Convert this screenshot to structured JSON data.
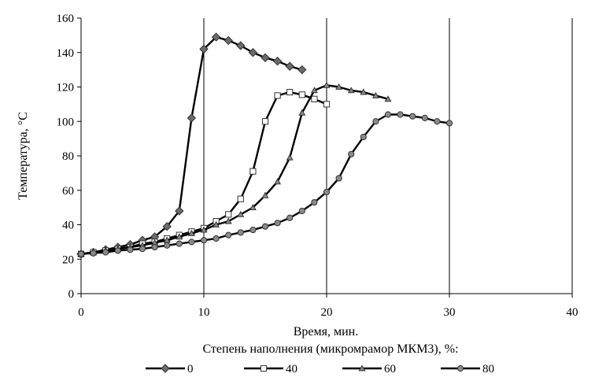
{
  "chart_data": {
    "type": "line",
    "title": "",
    "xlabel": "Время, мин.",
    "ylabel": "Температура, °С",
    "xlim": [
      0,
      40
    ],
    "ylim": [
      0,
      160
    ],
    "xticks": [
      0,
      10,
      20,
      30,
      40
    ],
    "yticks": [
      0,
      20,
      40,
      60,
      80,
      100,
      120,
      140,
      160
    ],
    "grid": "vertical",
    "legend_title": "Степень наполнения (микромрамор МКМ3), %:",
    "legend_position": "bottom",
    "series": [
      {
        "name": "0",
        "marker": "diamond",
        "x": [
          0,
          1,
          2,
          3,
          4,
          5,
          6,
          7,
          8,
          9,
          10,
          11,
          12,
          13,
          14,
          15,
          16,
          17,
          18
        ],
        "y": [
          23,
          24,
          25.5,
          27,
          28.5,
          31,
          33,
          39,
          48,
          102,
          142,
          149,
          147,
          144,
          140,
          137,
          135,
          132,
          130
        ]
      },
      {
        "name": "40",
        "marker": "square",
        "x": [
          0,
          1,
          2,
          3,
          4,
          5,
          6,
          7,
          8,
          9,
          10,
          11,
          12,
          13,
          14,
          15,
          16,
          17,
          18,
          19,
          20
        ],
        "y": [
          23,
          24,
          25,
          26,
          27,
          29,
          30,
          32,
          34,
          36,
          38,
          42,
          46,
          55,
          71,
          100,
          115,
          117,
          115.5,
          113,
          110
        ]
      },
      {
        "name": "60",
        "marker": "triangle",
        "x": [
          0,
          1,
          2,
          3,
          4,
          5,
          6,
          7,
          8,
          9,
          10,
          11,
          12,
          13,
          14,
          15,
          16,
          17,
          18,
          19,
          20,
          21,
          22,
          23,
          24,
          25
        ],
        "y": [
          23,
          24,
          25,
          26,
          27,
          28,
          29.5,
          31,
          33,
          35,
          37,
          40,
          42,
          46,
          50,
          57,
          65,
          79,
          105,
          118,
          121,
          120,
          118,
          117,
          115,
          113
        ]
      },
      {
        "name": "80",
        "marker": "circle",
        "x": [
          0,
          1,
          2,
          3,
          4,
          5,
          6,
          7,
          8,
          9,
          10,
          11,
          12,
          13,
          14,
          15,
          16,
          17,
          18,
          19,
          20,
          21,
          22,
          23,
          24,
          25,
          26,
          27,
          28,
          29,
          30
        ],
        "y": [
          23,
          23.5,
          24,
          25,
          25.5,
          26,
          27,
          28,
          29,
          30,
          31,
          32,
          34,
          35.5,
          37,
          39,
          41,
          44,
          48,
          53,
          59,
          67,
          81,
          91,
          100,
          104,
          104,
          103,
          102,
          100,
          99
        ]
      }
    ]
  }
}
